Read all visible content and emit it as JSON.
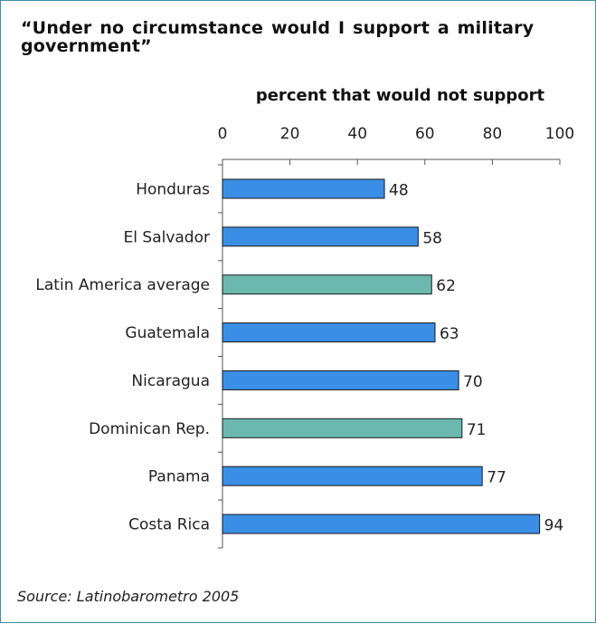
{
  "title": "“Under no circumstance would I support a military government”",
  "source": "Source: Latinobarometro 2005",
  "colors": {
    "standard": "#3a8ee6",
    "highlight": "#6ab8ae",
    "border": "#3f8fa6"
  },
  "chart_data": {
    "type": "bar",
    "orientation": "horizontal",
    "xlabel": "percent that would not support",
    "xlim": [
      0,
      100
    ],
    "xticks": [
      0,
      20,
      40,
      60,
      80,
      100
    ],
    "grid": false,
    "categories": [
      "Honduras",
      "El Salvador",
      "Latin America average",
      "Guatemala",
      "Nicaragua",
      "Dominican Rep.",
      "Panama",
      "Costa Rica"
    ],
    "values": [
      48,
      58,
      62,
      63,
      70,
      71,
      77,
      94
    ],
    "highlighted": [
      "Latin America average",
      "Dominican Rep."
    ]
  }
}
